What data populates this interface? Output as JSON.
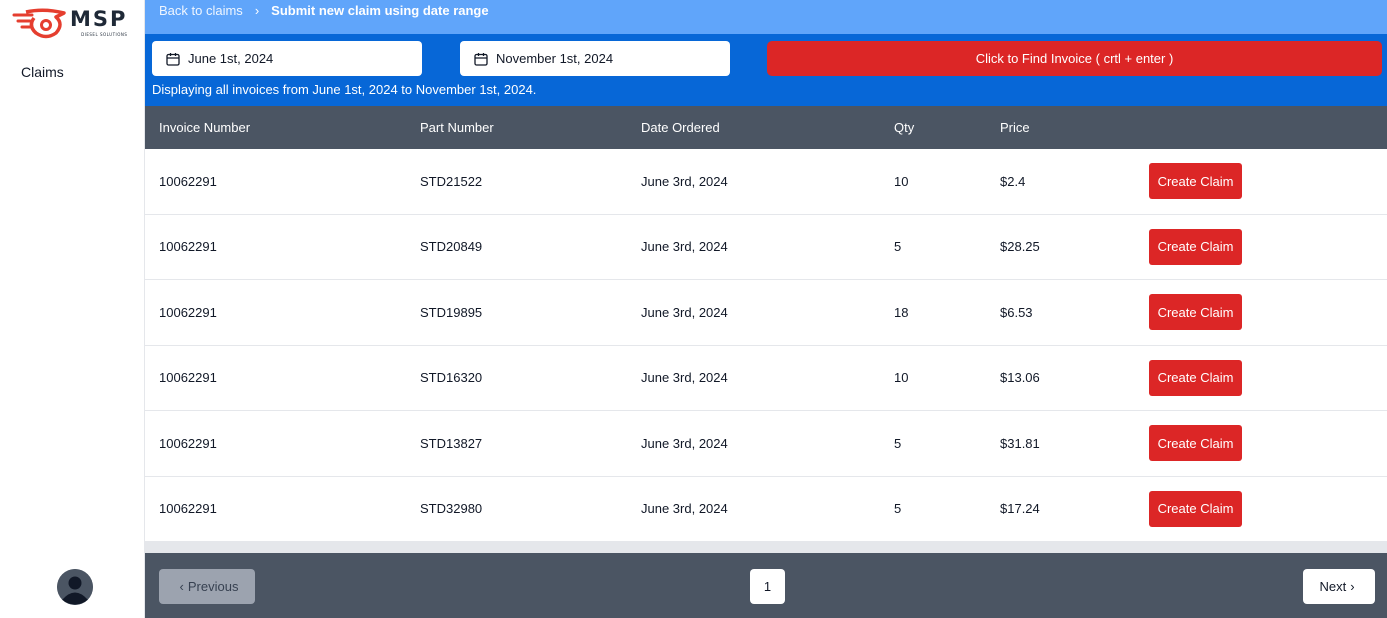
{
  "brand": {
    "name": "MSP",
    "tagline": "DIESEL SOLUTIONS",
    "accent": "#e53e2f"
  },
  "sidebar": {
    "items": [
      {
        "label": "Claims"
      }
    ]
  },
  "breadcrumb": {
    "back": "Back to claims",
    "separator": "›",
    "current": "Submit new claim using date range"
  },
  "filters": {
    "start_date": "June 1st, 2024",
    "end_date": "November 1st, 2024",
    "find_button": "Click to Find Invoice ( crtl + enter )",
    "range_text": "Displaying all invoices from June 1st, 2024 to November 1st, 2024."
  },
  "table": {
    "columns": [
      "Invoice Number",
      "Part Number",
      "Date Ordered",
      "Qty",
      "Price"
    ],
    "action_label": "Create Claim",
    "rows": [
      {
        "invoice": "10062291",
        "part": "STD21522",
        "date": "June 3rd, 2024",
        "qty": "10",
        "price": "$2.4"
      },
      {
        "invoice": "10062291",
        "part": "STD20849",
        "date": "June 3rd, 2024",
        "qty": "5",
        "price": "$28.25"
      },
      {
        "invoice": "10062291",
        "part": "STD19895",
        "date": "June 3rd, 2024",
        "qty": "18",
        "price": "$6.53"
      },
      {
        "invoice": "10062291",
        "part": "STD16320",
        "date": "June 3rd, 2024",
        "qty": "10",
        "price": "$13.06"
      },
      {
        "invoice": "10062291",
        "part": "STD13827",
        "date": "June 3rd, 2024",
        "qty": "5",
        "price": "$31.81"
      },
      {
        "invoice": "10062291",
        "part": "STD32980",
        "date": "June 3rd, 2024",
        "qty": "5",
        "price": "$17.24"
      }
    ]
  },
  "pagination": {
    "previous": "Previous",
    "current_page": "1",
    "next": "Next"
  },
  "colors": {
    "topbar": "#60a5fa",
    "filterbar": "#0767d7",
    "danger": "#dc2626",
    "table_header": "#4b5563"
  }
}
